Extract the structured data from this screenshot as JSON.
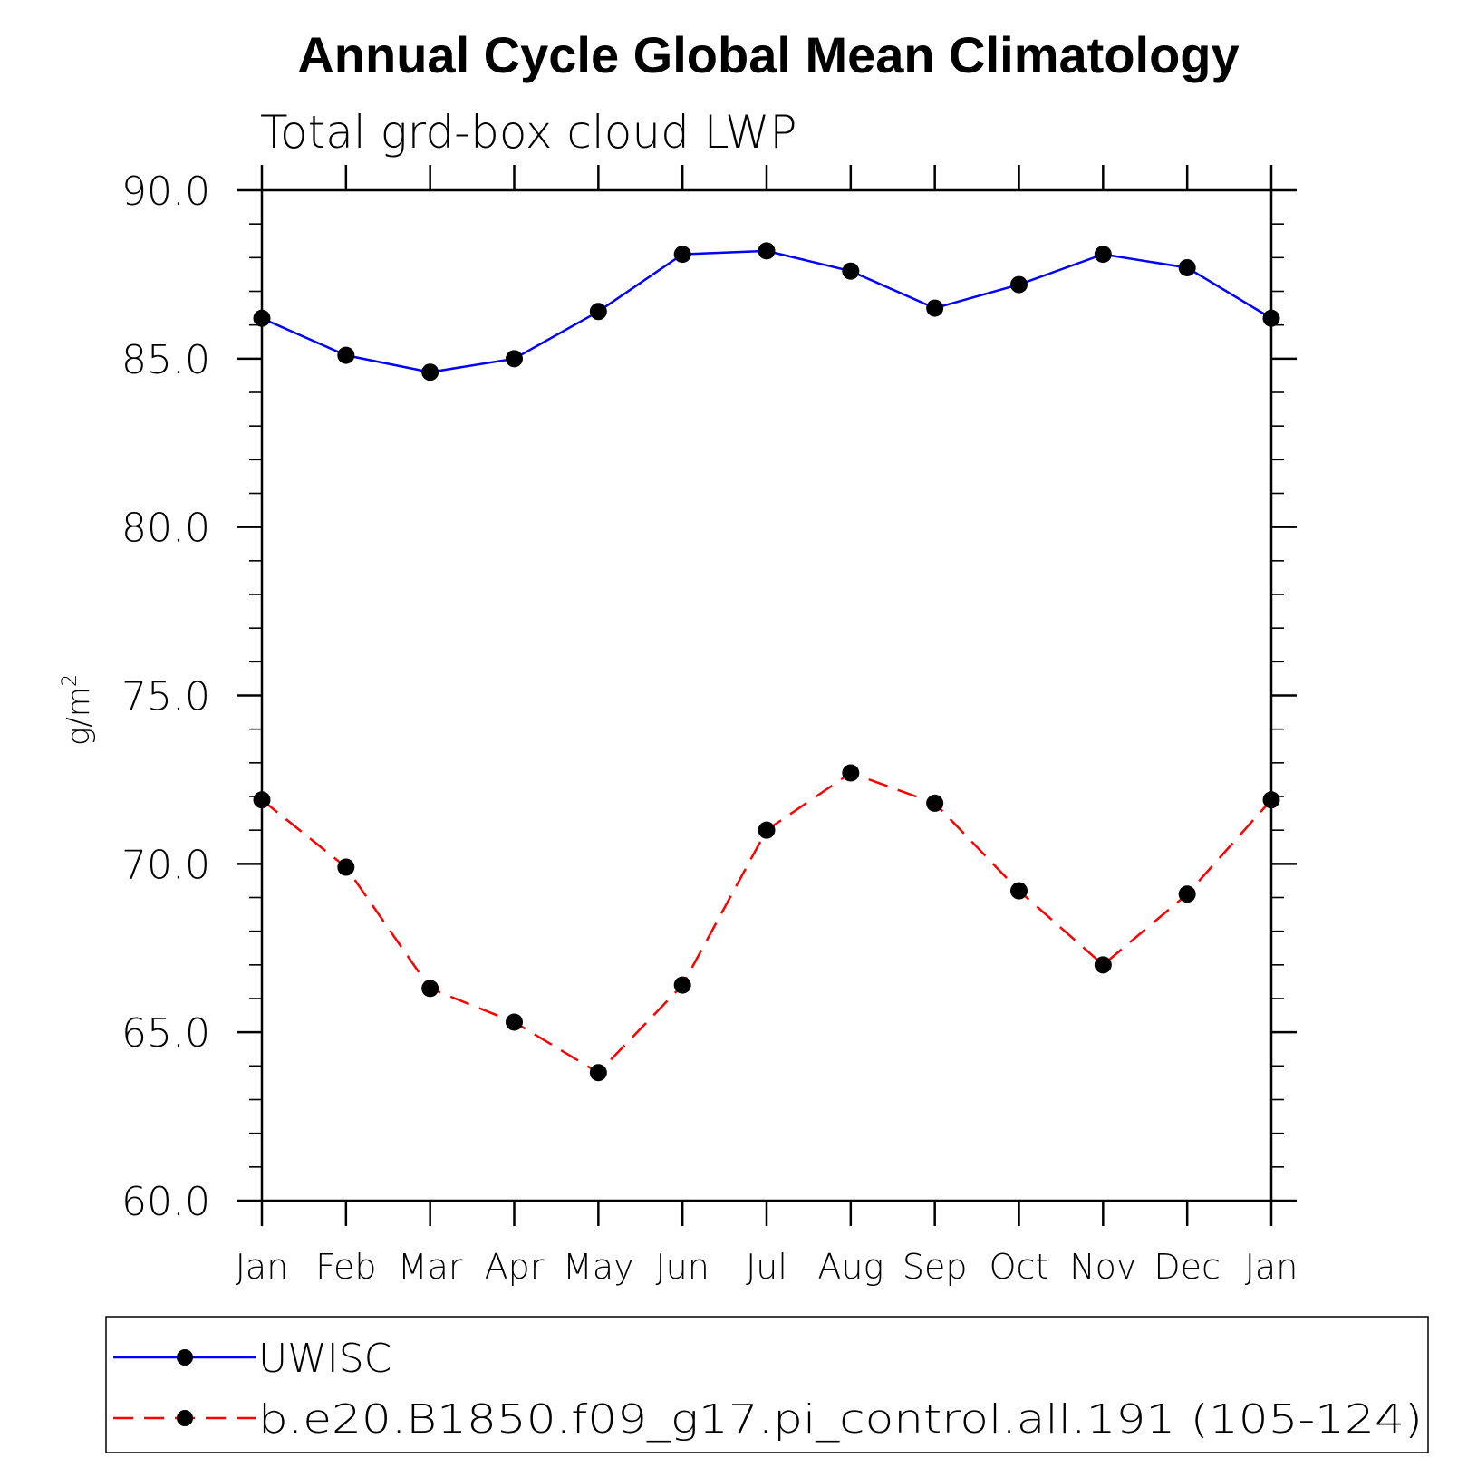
{
  "chart_data": {
    "type": "line",
    "title": "Annual Cycle Global Mean Climatology",
    "subtitle": "Total grd-box cloud LWP",
    "ylabel": "g/m",
    "ylabel_superscript": "2",
    "xlabel": "",
    "ylim": [
      60,
      90
    ],
    "y_ticks": [
      60,
      65,
      70,
      75,
      80,
      85,
      90
    ],
    "y_tick_labels": [
      "60.0",
      "65.0",
      "70.0",
      "75.0",
      "80.0",
      "85.0",
      "90.0"
    ],
    "y_minor_step": 1,
    "categories": [
      "Jan",
      "Feb",
      "Mar",
      "Apr",
      "May",
      "Jun",
      "Jul",
      "Aug",
      "Sep",
      "Oct",
      "Nov",
      "Dec",
      "Jan"
    ],
    "series": [
      {
        "name": "UWISC",
        "color": "#0000ff",
        "dash": "solid",
        "marker": "filled-circle",
        "values": [
          86.2,
          85.1,
          84.6,
          85.0,
          86.4,
          88.1,
          88.2,
          87.6,
          86.5,
          87.2,
          88.1,
          87.7,
          86.2
        ]
      },
      {
        "name": "b.e20.B1850.f09_g17.pi_control.all.191 (105-124)",
        "color": "#ff0000",
        "dash": "dashed",
        "marker": "filled-circle",
        "values": [
          71.9,
          69.9,
          66.3,
          65.3,
          63.8,
          66.4,
          71.0,
          72.7,
          71.8,
          69.2,
          67.0,
          69.1,
          71.9
        ]
      }
    ],
    "legend_position": "bottom",
    "grid": false
  }
}
